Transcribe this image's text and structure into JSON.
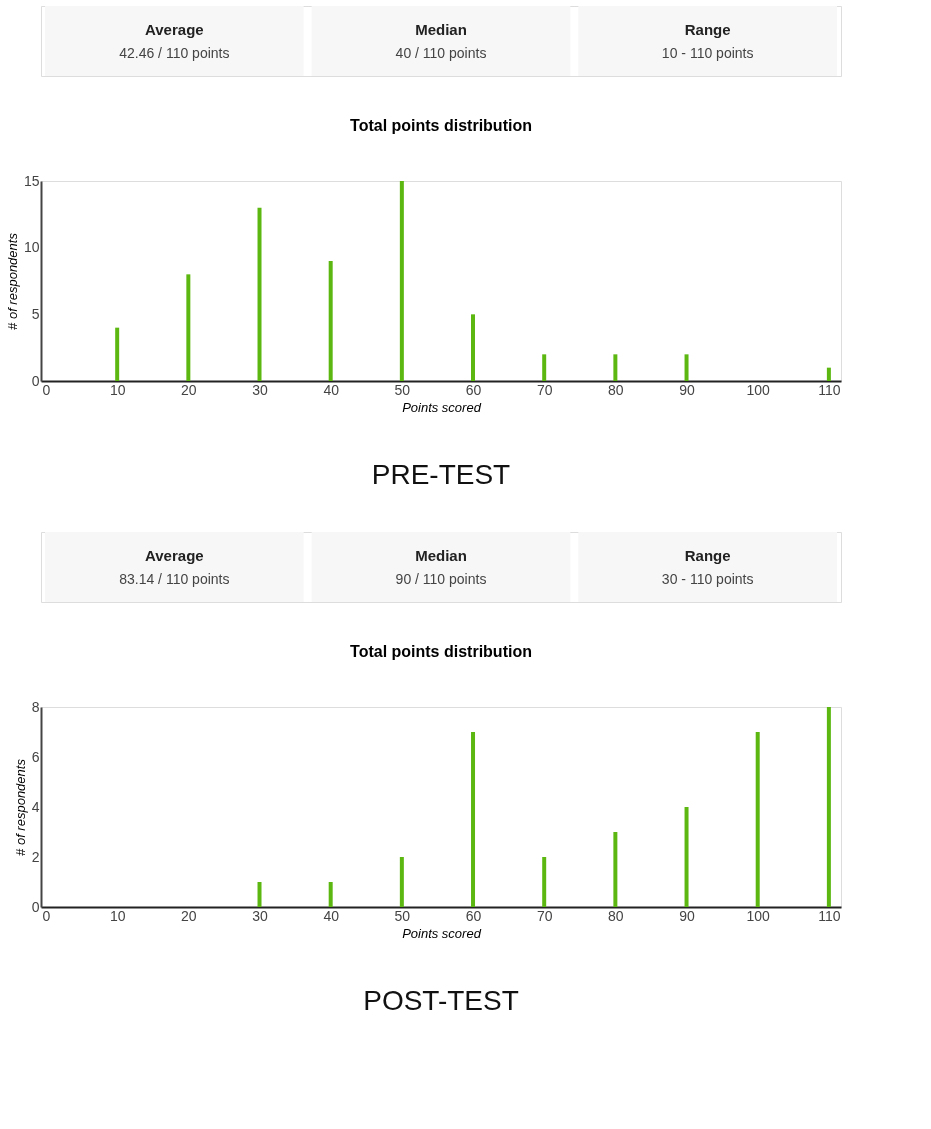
{
  "chart_data": [
    {
      "type": "other",
      "annotations": [
        "Average",
        "42.46 / 110 points",
        "Median",
        "40 / 110 points",
        "Range",
        "10 - 110 points"
      ]
    },
    {
      "type": "bar",
      "title": "Total points distribution",
      "xlabel": "Points scored",
      "ylabel": "# of respondents",
      "x": [
        10,
        20,
        30,
        40,
        50,
        60,
        70,
        80,
        90,
        110
      ],
      "values": [
        4,
        8,
        13,
        9,
        15,
        5,
        2,
        2,
        2,
        1
      ],
      "color": "#5cb811",
      "xlim": [
        0,
        111
      ],
      "xticks": [
        0,
        10,
        20,
        30,
        40,
        50,
        60,
        70,
        80,
        90,
        100,
        110
      ],
      "ylim": [
        0,
        15
      ],
      "yticks": [
        0,
        5,
        10,
        15
      ],
      "grid": false,
      "annotations": [
        "PRE-TEST"
      ]
    },
    {
      "type": "other",
      "annotations": [
        "Average",
        "83.14 / 110 points",
        "Median",
        "90 / 110 points",
        "Range",
        "30 - 110 points"
      ]
    },
    {
      "type": "bar",
      "title": "Total points distribution",
      "xlabel": "Points scored",
      "ylabel": "# of respondents",
      "x": [
        30,
        40,
        50,
        60,
        70,
        80,
        90,
        100,
        110
      ],
      "values": [
        1,
        1,
        2,
        7,
        2,
        3,
        4,
        7,
        8
      ],
      "color": "#5cb811",
      "xlim": [
        0,
        111
      ],
      "xticks": [
        0,
        10,
        20,
        30,
        40,
        50,
        60,
        70,
        80,
        90,
        100,
        110
      ],
      "ylim": [
        0,
        8
      ],
      "yticks": [
        0,
        2,
        4,
        6,
        8
      ],
      "grid": false,
      "annotations": [
        "POST-TEST"
      ]
    }
  ]
}
